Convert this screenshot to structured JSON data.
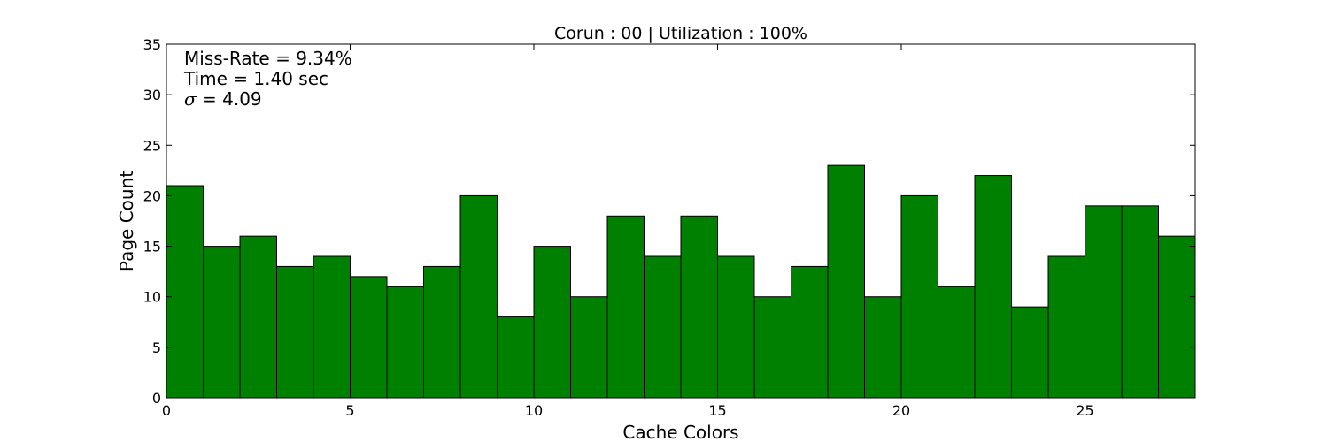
{
  "chart_data": {
    "type": "bar",
    "title": "Corun : 00 | Utilization : 100%",
    "xlabel": "Cache Colors",
    "ylabel": "Page Count",
    "x": [
      0,
      1,
      2,
      3,
      4,
      5,
      6,
      7,
      8,
      9,
      10,
      11,
      12,
      13,
      14,
      15,
      16,
      17,
      18,
      19,
      20,
      21,
      22,
      23,
      24,
      25,
      26,
      27
    ],
    "values": [
      21,
      15,
      16,
      13,
      14,
      12,
      11,
      13,
      20,
      8,
      15,
      10,
      18,
      14,
      18,
      14,
      10,
      13,
      23,
      10,
      20,
      11,
      22,
      9,
      14,
      19,
      19,
      16
    ],
    "bar_width": 1,
    "xlim": [
      0,
      28
    ],
    "ylim": [
      0,
      35
    ],
    "xticks": [
      0,
      5,
      10,
      15,
      20,
      25
    ],
    "yticks": [
      0,
      5,
      10,
      15,
      20,
      25,
      30,
      35
    ],
    "bar_color": "#008000",
    "edge_color": "#000000",
    "grid": false,
    "annotations": {
      "miss_rate": "Miss-Rate = 9.34%",
      "time": "Time = 1.40 sec",
      "sigma_symbol": "σ",
      "sigma_value": " = 4.09"
    }
  }
}
